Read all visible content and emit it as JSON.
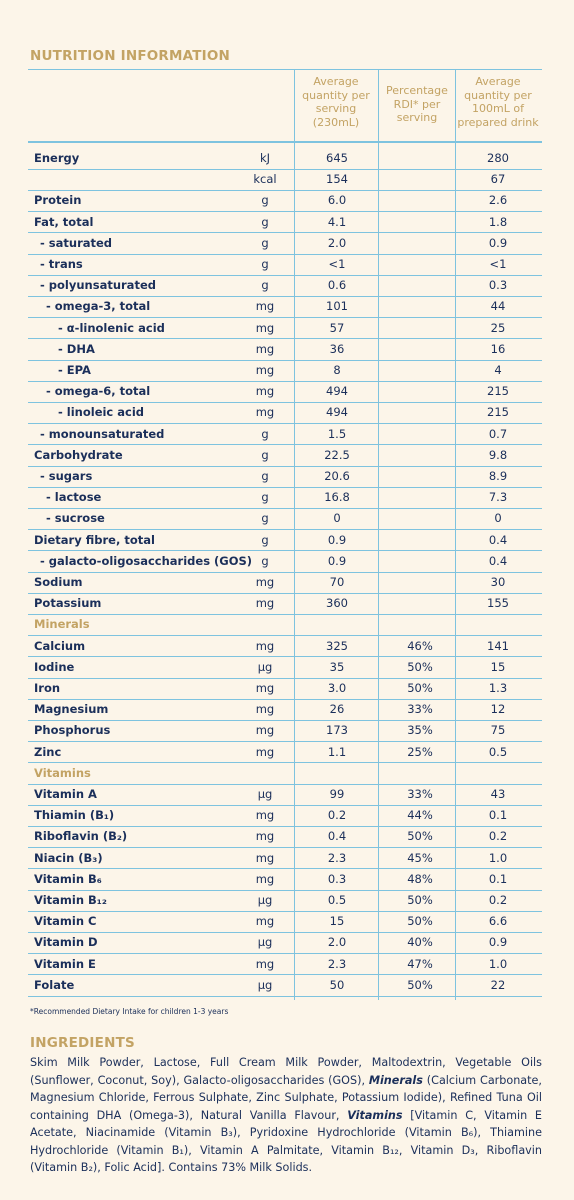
{
  "title": "NUTRITION INFORMATION",
  "columns": {
    "serving": [
      "Average",
      "quantity per",
      "serving",
      "(230mL)"
    ],
    "rdi": [
      "Percentage",
      "RDI* per",
      "serving"
    ],
    "per100": [
      "Average",
      "quantity per",
      "100mL of",
      "prepared drink"
    ]
  },
  "rows": [
    {
      "label": "Energy",
      "indent": 0,
      "unit": "kJ",
      "serving": "645",
      "rdi": "",
      "per100": "280"
    },
    {
      "label": "",
      "indent": 0,
      "unit": "kcal",
      "serving": "154",
      "rdi": "",
      "per100": "67"
    },
    {
      "label": "Protein",
      "indent": 0,
      "unit": "g",
      "serving": "6.0",
      "rdi": "",
      "per100": "2.6"
    },
    {
      "label": "Fat, total",
      "indent": 0,
      "unit": "g",
      "serving": "4.1",
      "rdi": "",
      "per100": "1.8"
    },
    {
      "label": "- saturated",
      "indent": 1,
      "unit": "g",
      "serving": "2.0",
      "rdi": "",
      "per100": "0.9"
    },
    {
      "label": "- trans",
      "indent": 1,
      "unit": "g",
      "serving": "<1",
      "rdi": "",
      "per100": "<1"
    },
    {
      "label": "- polyunsaturated",
      "indent": 1,
      "unit": "g",
      "serving": "0.6",
      "rdi": "",
      "per100": "0.3"
    },
    {
      "label": "- omega-3, total",
      "indent": 2,
      "unit": "mg",
      "serving": "101",
      "rdi": "",
      "per100": "44"
    },
    {
      "label": "- α-linolenic acid",
      "indent": 3,
      "unit": "mg",
      "serving": "57",
      "rdi": "",
      "per100": "25"
    },
    {
      "label": "- DHA",
      "indent": 3,
      "unit": "mg",
      "serving": "36",
      "rdi": "",
      "per100": "16"
    },
    {
      "label": "- EPA",
      "indent": 3,
      "unit": "mg",
      "serving": "8",
      "rdi": "",
      "per100": "4"
    },
    {
      "label": "- omega-6, total",
      "indent": 2,
      "unit": "mg",
      "serving": "494",
      "rdi": "",
      "per100": "215"
    },
    {
      "label": "- linoleic acid",
      "indent": 3,
      "unit": "mg",
      "serving": "494",
      "rdi": "",
      "per100": "215"
    },
    {
      "label": "- monounsaturated",
      "indent": 1,
      "unit": "g",
      "serving": "1.5",
      "rdi": "",
      "per100": "0.7"
    },
    {
      "label": "Carbohydrate",
      "indent": 0,
      "unit": "g",
      "serving": "22.5",
      "rdi": "",
      "per100": "9.8"
    },
    {
      "label": "- sugars",
      "indent": 1,
      "unit": "g",
      "serving": "20.6",
      "rdi": "",
      "per100": "8.9"
    },
    {
      "label": "- lactose",
      "indent": 2,
      "unit": "g",
      "serving": "16.8",
      "rdi": "",
      "per100": "7.3"
    },
    {
      "label": "- sucrose",
      "indent": 2,
      "unit": "g",
      "serving": "0",
      "rdi": "",
      "per100": "0"
    },
    {
      "label": "Dietary fibre, total",
      "indent": 0,
      "unit": "g",
      "serving": "0.9",
      "rdi": "",
      "per100": "0.4"
    },
    {
      "label": "- galacto-oligosaccharides (GOS)",
      "indent": 1,
      "unit": "g",
      "serving": "0.9",
      "rdi": "",
      "per100": "0.4"
    },
    {
      "label": "Sodium",
      "indent": 0,
      "unit": "mg",
      "serving": "70",
      "rdi": "",
      "per100": "30"
    },
    {
      "label": "Potassium",
      "indent": 0,
      "unit": "mg",
      "serving": "360",
      "rdi": "",
      "per100": "155"
    },
    {
      "label": "Minerals",
      "indent": 0,
      "unit": "",
      "serving": "",
      "rdi": "",
      "per100": "",
      "category": true
    },
    {
      "label": "Calcium",
      "indent": 0,
      "unit": "mg",
      "serving": "325",
      "rdi": "46%",
      "per100": "141"
    },
    {
      "label": "Iodine",
      "indent": 0,
      "unit": "µg",
      "serving": "35",
      "rdi": "50%",
      "per100": "15"
    },
    {
      "label": "Iron",
      "indent": 0,
      "unit": "mg",
      "serving": "3.0",
      "rdi": "50%",
      "per100": "1.3"
    },
    {
      "label": "Magnesium",
      "indent": 0,
      "unit": "mg",
      "serving": "26",
      "rdi": "33%",
      "per100": "12"
    },
    {
      "label": "Phosphorus",
      "indent": 0,
      "unit": "mg",
      "serving": "173",
      "rdi": "35%",
      "per100": "75"
    },
    {
      "label": "Zinc",
      "indent": 0,
      "unit": "mg",
      "serving": "1.1",
      "rdi": "25%",
      "per100": "0.5"
    },
    {
      "label": "Vitamins",
      "indent": 0,
      "unit": "",
      "serving": "",
      "rdi": "",
      "per100": "",
      "category": true
    },
    {
      "label": "Vitamin A",
      "indent": 0,
      "unit": "µg",
      "serving": "99",
      "rdi": "33%",
      "per100": "43"
    },
    {
      "label": "Thiamin (B₁)",
      "indent": 0,
      "unit": "mg",
      "serving": "0.2",
      "rdi": "44%",
      "per100": "0.1"
    },
    {
      "label": "Riboflavin (B₂)",
      "indent": 0,
      "unit": "mg",
      "serving": "0.4",
      "rdi": "50%",
      "per100": "0.2"
    },
    {
      "label": "Niacin (B₃)",
      "indent": 0,
      "unit": "mg",
      "serving": "2.3",
      "rdi": "45%",
      "per100": "1.0"
    },
    {
      "label": "Vitamin B₆",
      "indent": 0,
      "unit": "mg",
      "serving": "0.3",
      "rdi": "48%",
      "per100": "0.1"
    },
    {
      "label": "Vitamin B₁₂",
      "indent": 0,
      "unit": "µg",
      "serving": "0.5",
      "rdi": "50%",
      "per100": "0.2"
    },
    {
      "label": "Vitamin C",
      "indent": 0,
      "unit": "mg",
      "serving": "15",
      "rdi": "50%",
      "per100": "6.6"
    },
    {
      "label": "Vitamin D",
      "indent": 0,
      "unit": "µg",
      "serving": "2.0",
      "rdi": "40%",
      "per100": "0.9"
    },
    {
      "label": "Vitamin E",
      "indent": 0,
      "unit": "mg",
      "serving": "2.3",
      "rdi": "47%",
      "per100": "1.0"
    },
    {
      "label": "Folate",
      "indent": 0,
      "unit": "µg",
      "serving": "50",
      "rdi": "50%",
      "per100": "22"
    }
  ],
  "footnote": "*Recommended Dietary Intake for children 1-3 years",
  "ingredients": {
    "title": "INGREDIENTS",
    "parts": [
      {
        "text": "Skim Milk Powder, Lactose, Full Cream Milk Powder, Maltodextrin, Vegetable Oils (Sunflower, Coconut, Soy), Galacto-oligosaccharides (GOS), ",
        "bold": false
      },
      {
        "text": "Minerals",
        "bold": true
      },
      {
        "text": " (Calcium Carbonate, Magnesium Chloride, Ferrous Sulphate, Zinc Sulphate, Potassium Iodide), Refined Tuna Oil containing DHA (Omega-3), Natural Vanilla Flavour, ",
        "bold": false
      },
      {
        "text": "Vitamins",
        "bold": true
      },
      {
        "text": " [Vitamin C, Vitamin E Acetate, Niacinamide (Vitamin B₃), Pyridoxine Hydrochloride (Vitamin B₆), Thiamine Hydrochloride (Vitamin B₁), Vitamin A Palmitate, Vitamin B₁₂, Vitamin D₃, Riboflavin (Vitamin B₂), Folic Acid]. Contains 73% Milk Solids.",
        "bold": false
      }
    ]
  },
  "colors": {
    "text": "#1b2f5a",
    "accent": "#c3a364",
    "rule": "#7ec3df",
    "background": "#fcf5e9"
  }
}
